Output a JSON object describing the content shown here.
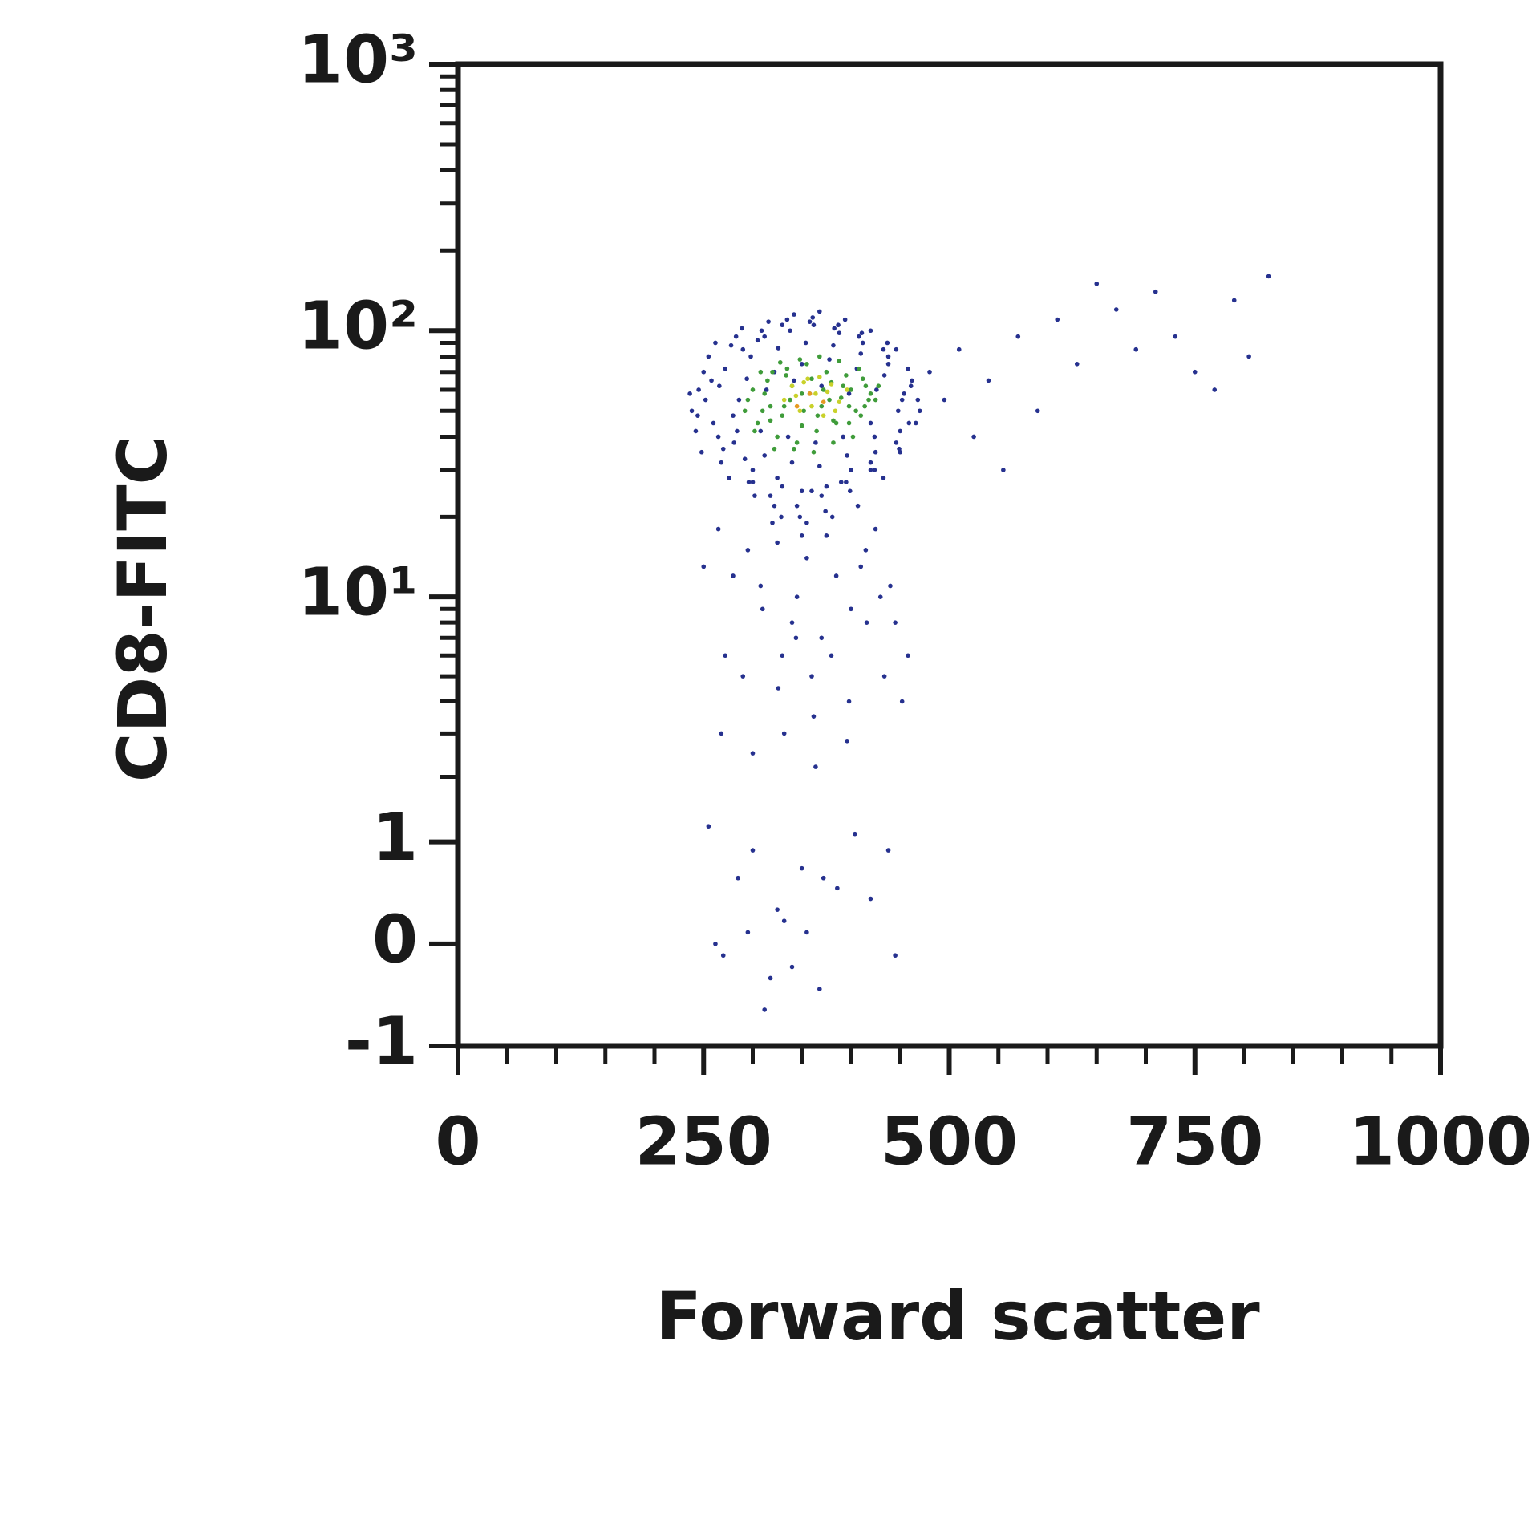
{
  "chart_data": {
    "type": "scatter",
    "xlabel": "Forward scatter",
    "ylabel": "CD8-FITC",
    "xlim": [
      0,
      1000
    ],
    "xticks": [
      0,
      250,
      500,
      750,
      1000
    ],
    "xminorticks": [
      50,
      100,
      150,
      200,
      300,
      350,
      400,
      450,
      550,
      600,
      650,
      700,
      800,
      850,
      900,
      950
    ],
    "ylim": [
      -1,
      1000
    ],
    "yscale": "asinh",
    "yticks": [
      -1,
      0,
      1,
      {
        "value": 10,
        "label": "10¹"
      },
      {
        "value": 100,
        "label": "10²"
      },
      {
        "value": 1000,
        "label": "10³"
      }
    ],
    "yminorticks": [
      2,
      3,
      4,
      5,
      6,
      7,
      8,
      9,
      20,
      30,
      40,
      50,
      60,
      70,
      80,
      90,
      200,
      300,
      400,
      500,
      600,
      700,
      800,
      900
    ],
    "series": [
      {
        "color": "#26318f",
        "x": [
          245,
          260,
          272,
          281,
          290,
          300,
          312,
          325,
          338,
          350,
          362,
          375,
          388,
          400,
          412,
          425,
          438,
          450,
          462,
          470,
          238,
          250,
          265,
          278,
          292,
          305,
          318,
          330,
          345,
          358,
          370,
          383,
          395,
          408,
          420,
          433,
          446,
          458,
          468,
          242,
          255,
          268,
          283,
          296,
          309,
          322,
          335,
          348,
          361,
          374,
          387,
          399,
          411,
          424,
          437,
          449,
          461,
          248,
          262,
          276,
          289,
          302,
          316,
          329,
          342,
          355,
          368,
          381,
          394,
          407,
          420,
          433,
          446,
          459,
          252,
          266,
          280,
          294,
          308,
          322,
          336,
          350,
          364,
          378,
          392,
          406,
          420,
          434,
          448,
          236,
          270,
          284,
          298,
          312,
          326,
          340,
          354,
          368,
          382,
          396,
          410,
          424,
          438,
          452,
          466,
          244,
          258,
          286,
          314,
          342,
          370,
          398,
          426,
          454,
          300,
          330,
          360,
          390,
          420,
          450,
          265,
          280,
          295,
          310,
          325,
          340,
          355,
          370,
          385,
          400,
          415,
          430,
          445,
          458,
          272,
          290,
          308,
          326,
          344,
          362,
          380,
          398,
          416,
          434,
          452,
          268,
          300,
          332,
          364,
          396,
          250,
          320,
          350,
          345,
          330,
          360,
          375,
          410,
          440,
          425,
          255,
          270,
          285,
          300,
          318,
          332,
          350,
          368,
          386,
          404,
          420,
          438,
          295,
          312,
          325,
          340,
          355,
          372,
          262,
          445,
          480,
          495,
          510,
          525,
          540,
          555,
          570,
          590,
          610,
          630,
          650,
          670,
          690,
          710,
          730,
          750,
          770,
          790,
          805,
          825
        ],
        "y": [
          60,
          45,
          72,
          38,
          85,
          30,
          95,
          28,
          100,
          25,
          105,
          26,
          98,
          30,
          90,
          35,
          80,
          42,
          65,
          50,
          50,
          70,
          40,
          88,
          33,
          92,
          24,
          105,
          22,
          108,
          24,
          102,
          27,
          95,
          32,
          85,
          38,
          72,
          55,
          42,
          80,
          32,
          95,
          27,
          100,
          22,
          110,
          20,
          112,
          21,
          105,
          25,
          98,
          30,
          90,
          36,
          62,
          35,
          90,
          28,
          102,
          24,
          108,
          20,
          115,
          19,
          118,
          20,
          110,
          22,
          100,
          28,
          85,
          45,
          55,
          62,
          48,
          66,
          42,
          70,
          40,
          75,
          38,
          78,
          40,
          72,
          45,
          68,
          50,
          58,
          36,
          42,
          80,
          34,
          86,
          32,
          90,
          31,
          88,
          34,
          82,
          40,
          75,
          55,
          45,
          48,
          65,
          55,
          60,
          65,
          62,
          58,
          60,
          58,
          27,
          26,
          25,
          27,
          30,
          35,
          18,
          12,
          15,
          9,
          16,
          8,
          14,
          7,
          12,
          9,
          15,
          10,
          8,
          6,
          6,
          5,
          11,
          4.5,
          7,
          3.5,
          6,
          4,
          8,
          5,
          4,
          3,
          2.5,
          3,
          2.2,
          2.8,
          13,
          19,
          17,
          10,
          6,
          5,
          17,
          13,
          11,
          18,
          1.2,
          -0.1,
          0.6,
          0.9,
          -0.3,
          0.2,
          0.7,
          -0.4,
          0.5,
          1.1,
          0.4,
          0.9,
          0.1,
          -0.6,
          0.3,
          -0.2,
          0.1,
          0.6,
          0.0,
          -0.1,
          70,
          55,
          85,
          40,
          65,
          30,
          95,
          50,
          110,
          75,
          150,
          120,
          85,
          140,
          95,
          70,
          60,
          130,
          80,
          160
        ]
      },
      {
        "color": "#3f9c3a",
        "x": [
          295,
          305,
          315,
          325,
          335,
          345,
          355,
          365,
          375,
          385,
          395,
          405,
          415,
          425,
          300,
          310,
          320,
          330,
          340,
          350,
          360,
          370,
          380,
          390,
          400,
          410,
          420,
          302,
          318,
          334,
          350,
          366,
          382,
          398,
          414,
          308,
          328,
          348,
          368,
          388,
          408,
          292,
          312,
          332,
          352,
          372,
          392,
          412,
          428,
          322,
          342,
          362,
          382,
          402,
          318,
          338,
          358,
          378,
          398,
          418
        ],
        "y": [
          55,
          45,
          65,
          40,
          72,
          38,
          75,
          42,
          70,
          45,
          68,
          50,
          62,
          55,
          60,
          50,
          70,
          48,
          62,
          58,
          66,
          52,
          64,
          56,
          60,
          48,
          58,
          42,
          46,
          68,
          44,
          48,
          46,
          45,
          52,
          70,
          76,
          78,
          80,
          77,
          72,
          50,
          58,
          52,
          50,
          60,
          62,
          66,
          62,
          36,
          36,
          35,
          38,
          40,
          52,
          55,
          58,
          55,
          52,
          55
        ]
      },
      {
        "color": "#c9d12a",
        "x": [
          332,
          340,
          348,
          356,
          364,
          372,
          380,
          388,
          396,
          344,
          360,
          376,
          352,
          368,
          384
        ],
        "y": [
          55,
          62,
          50,
          66,
          58,
          48,
          63,
          54,
          60,
          57,
          52,
          59,
          64,
          67,
          50
        ]
      },
      {
        "color": "#e69a22",
        "x": [
          345,
          358,
          372
        ],
        "y": [
          52,
          58,
          54
        ]
      }
    ]
  }
}
